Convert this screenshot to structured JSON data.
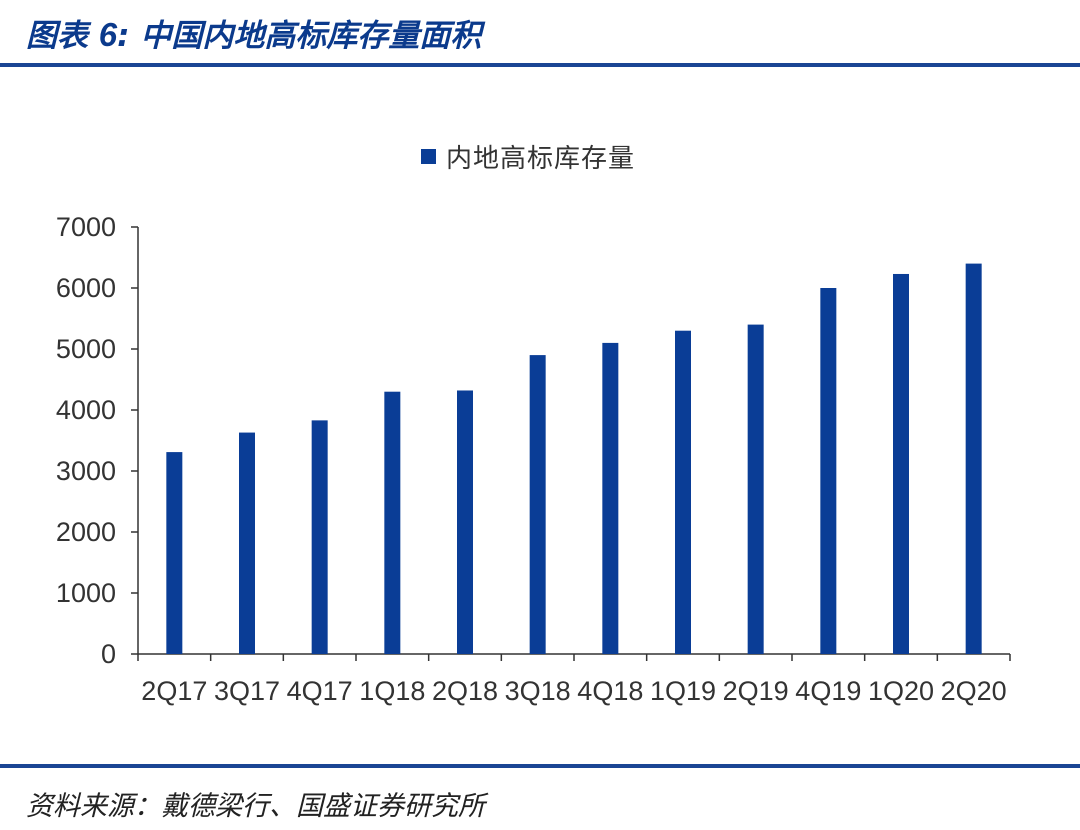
{
  "figure": {
    "label": "图表",
    "number": "6",
    "separator": ":",
    "title": "中国内地高标库存量面积",
    "source": "资料来源：戴德梁行、国盛证券研究所"
  },
  "colors": {
    "bar": "#0a3d96",
    "rule": "#1a4594",
    "title": "#0b3a8c"
  },
  "chart_data": {
    "type": "bar",
    "categories": [
      "2Q17",
      "3Q17",
      "4Q17",
      "1Q18",
      "2Q18",
      "3Q18",
      "4Q18",
      "1Q19",
      "2Q19",
      "4Q19",
      "1Q20",
      "2Q20"
    ],
    "series": [
      {
        "name": "内地高标库存量",
        "values": [
          3310,
          3630,
          3830,
          4300,
          4320,
          4900,
          5100,
          5300,
          5400,
          6000,
          6230,
          6400
        ]
      }
    ],
    "ylim": [
      0,
      7000
    ],
    "yticks": [
      0,
      1000,
      2000,
      3000,
      4000,
      5000,
      6000,
      7000
    ],
    "legend": "top-center",
    "grid": false
  }
}
